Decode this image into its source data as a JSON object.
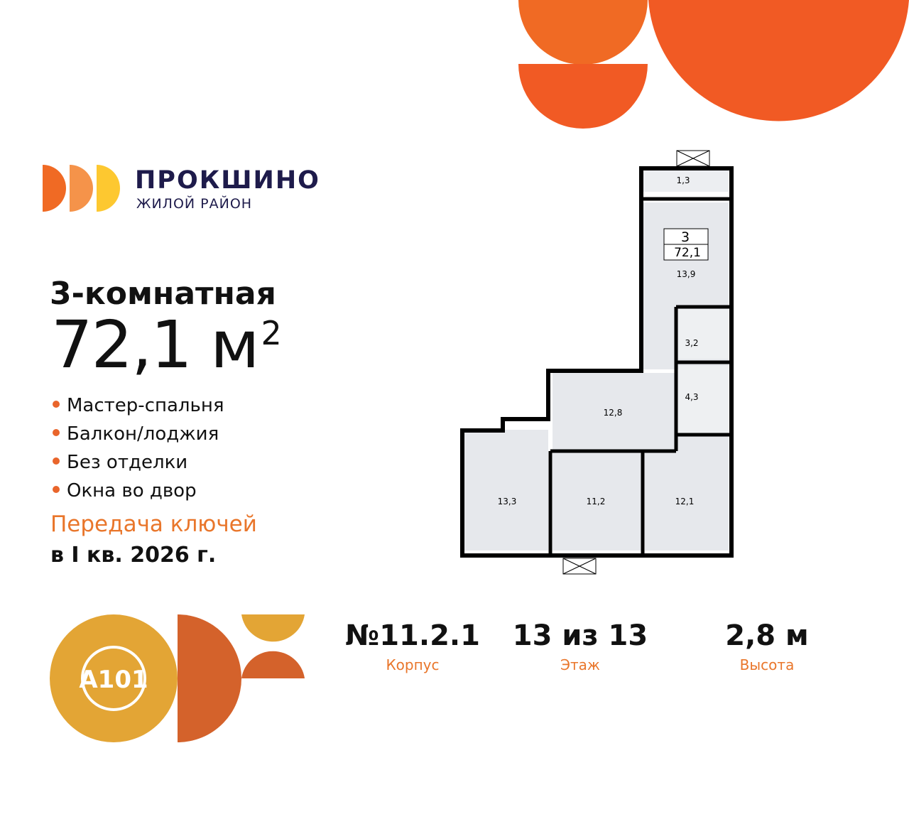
{
  "brand": {
    "name": "ПРОКШИНО",
    "subtitle": "ЖИЛОЙ РАЙОН",
    "developer_logo": "A101"
  },
  "apartment": {
    "rooms_label": "3-комнатная",
    "area": "72,1 м",
    "area_unit_sup": "2",
    "features": [
      "Мастер-спальня",
      "Балкон/лоджия",
      "Без отделки",
      "Окна во двор"
    ],
    "keys_label": "Передача ключей",
    "keys_date": "в I кв. 2026 г."
  },
  "stats": [
    {
      "value": "№11.2.1",
      "label": "Корпус"
    },
    {
      "value": "13 из 13",
      "label": "Этаж"
    },
    {
      "value": "2,8 м",
      "label": "Высота"
    }
  ],
  "plan": {
    "room_count": "3",
    "total_area": "72,1",
    "rooms": [
      {
        "name": "balcony",
        "area": "1,3"
      },
      {
        "name": "bedroom-master",
        "area": "13,9"
      },
      {
        "name": "bathroom-1",
        "area": "3,2"
      },
      {
        "name": "bathroom-2",
        "area": "4,3"
      },
      {
        "name": "hall",
        "area": "12,8"
      },
      {
        "name": "kitchen",
        "area": "13,3"
      },
      {
        "name": "bedroom-2",
        "area": "11,2"
      },
      {
        "name": "bedroom-3",
        "area": "12,1"
      }
    ]
  },
  "colors": {
    "orange": "#f15a24",
    "amber": "#e3a535",
    "dark_orange": "#d4622b",
    "navy": "#1e1b4b"
  }
}
